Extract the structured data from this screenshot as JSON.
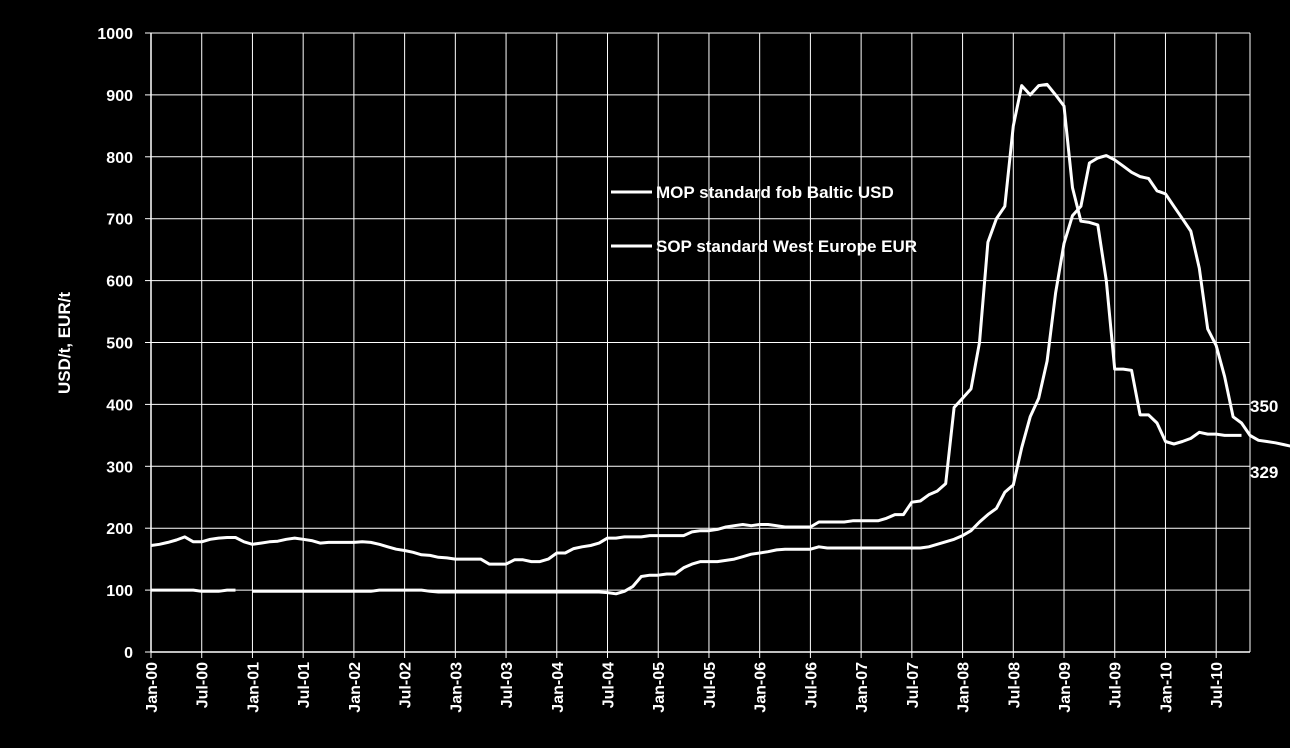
{
  "chart_data": {
    "type": "line",
    "ylabel": "USD/t, EUR/t",
    "xlabel": "",
    "ylim": [
      0,
      1000
    ],
    "yticks": [
      "0",
      "100",
      "200",
      "300",
      "400",
      "500",
      "600",
      "700",
      "800",
      "900",
      "1000"
    ],
    "xticks": [
      "Jan-00",
      "Jul-00",
      "Jan-01",
      "Jul-01",
      "Jan-02",
      "Jul-02",
      "Jan-03",
      "Jul-03",
      "Jan-04",
      "Jul-04",
      "Jan-05",
      "Jul-05",
      "Jan-06",
      "Jul-06",
      "Jan-07",
      "Jul-07",
      "Jan-08",
      "Jul-08",
      "Jan-09",
      "Jul-09",
      "Jan-10",
      "Jul-10"
    ],
    "x_start": "Jan-00",
    "x_end": "Oct-10",
    "grid": true,
    "legend": "upper center",
    "colors": {
      "background": "#000000",
      "line": "#ffffff",
      "grid": "#ffffff"
    },
    "end_labels": [
      "350",
      "329"
    ],
    "series": [
      {
        "name": "MOP standard fob Baltic USD",
        "values": [
          100,
          100,
          100,
          100,
          100,
          100,
          98,
          98,
          98,
          100,
          100,
          null,
          98,
          98,
          98,
          98,
          98,
          98,
          98,
          98,
          98,
          98,
          98,
          98,
          98,
          98,
          98,
          100,
          100,
          100,
          100,
          100,
          100,
          98,
          97,
          97,
          97,
          97,
          97,
          97,
          97,
          97,
          97,
          97,
          97,
          97,
          97,
          97,
          97,
          97,
          97,
          97,
          97,
          97,
          96,
          94,
          98,
          106,
          122,
          124,
          124,
          126,
          126,
          136,
          142,
          146,
          146,
          146,
          148,
          150,
          154,
          158,
          160,
          162,
          165,
          166,
          166,
          166,
          166,
          170,
          168,
          168,
          168,
          168,
          168,
          168,
          168,
          168,
          168,
          168,
          168,
          168,
          170,
          174,
          178,
          182,
          188,
          196,
          210,
          222,
          232,
          258,
          270,
          330,
          380,
          410,
          470,
          580,
          660,
          705,
          720,
          790,
          798,
          802,
          795,
          785,
          775,
          768,
          765,
          745,
          740,
          720,
          700,
          680,
          620,
          522,
          495,
          445,
          380,
          370,
          350,
          342,
          340,
          338,
          335,
          332,
          330,
          328,
          327,
          330,
          329
        ]
      },
      {
        "name": "SOP standard West Europe EUR",
        "values": [
          172,
          174,
          177,
          181,
          186,
          178,
          178,
          182,
          184,
          185,
          185,
          178,
          174,
          176,
          178,
          179,
          182,
          184,
          182,
          180,
          176,
          177,
          177,
          177,
          177,
          178,
          177,
          174,
          170,
          166,
          164,
          161,
          157,
          156,
          153,
          152,
          150,
          150,
          150,
          150,
          142,
          142,
          142,
          149,
          149,
          146,
          146,
          150,
          160,
          160,
          167,
          170,
          172,
          176,
          184,
          184,
          186,
          186,
          186,
          188,
          188,
          188,
          188,
          188,
          194,
          196,
          196,
          198,
          202,
          204,
          206,
          204,
          206,
          206,
          204,
          202,
          202,
          202,
          202,
          210,
          210,
          210,
          210,
          212,
          212,
          212,
          212,
          216,
          222,
          222,
          242,
          244,
          254,
          260,
          272,
          395,
          410,
          425,
          500,
          662,
          700,
          720,
          850,
          915,
          900,
          915,
          917,
          900,
          882,
          750,
          696,
          694,
          690,
          600,
          457,
          457,
          455,
          383,
          383,
          370,
          340,
          336,
          340,
          345,
          355,
          352,
          352,
          350,
          350,
          350
        ]
      }
    ]
  }
}
